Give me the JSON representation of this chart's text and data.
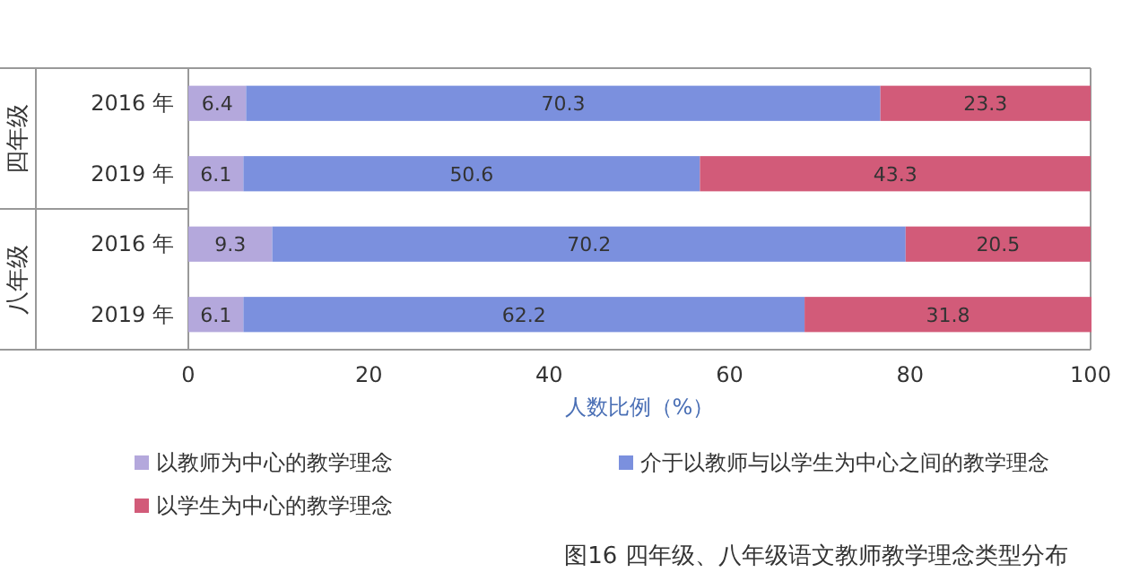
{
  "chart_data": {
    "type": "bar",
    "orientation": "horizontal",
    "stacked": true,
    "title": "图16  四年级、八年级语文教师教学理念类型分布",
    "categories": [
      "2016 年",
      "2019 年",
      "2016 年",
      "2019 年"
    ],
    "annotations": [
      "四年级",
      "八年级"
    ],
    "xlabel": "人数比例（%）",
    "xlim": [
      0,
      100
    ],
    "xticks": [
      0,
      20,
      40,
      60,
      80,
      100
    ],
    "series": [
      {
        "name": "以教师为中心的教学理念",
        "color": "#b4a8dc",
        "values": [
          6.4,
          6.1,
          9.3,
          6.1
        ]
      },
      {
        "name": "介于以教师与以学生为中心之间的教学理念",
        "color": "#7b90de",
        "values": [
          70.3,
          50.6,
          70.2,
          62.2
        ]
      },
      {
        "name": "以学生为中心的教学理念",
        "color": "#d25b79",
        "values": [
          23.3,
          43.3,
          20.5,
          31.8
        ]
      }
    ],
    "data_labels": true,
    "legend": "bottom"
  }
}
